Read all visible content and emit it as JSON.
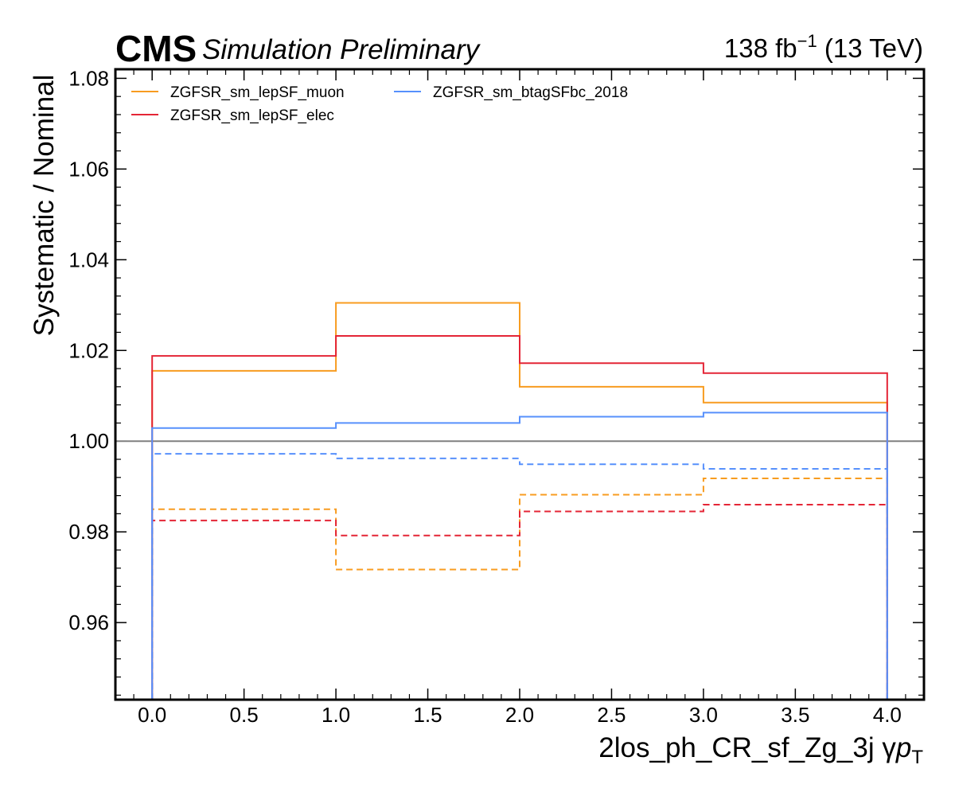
{
  "header": {
    "experiment": "CMS",
    "status": "Simulation Preliminary",
    "lumi_value": "138 fb",
    "lumi_exponent": "−1",
    "energy": "(13 TeV)"
  },
  "chart_data": {
    "type": "line",
    "style": "step",
    "ylabel": "Systematic / Nominal",
    "xlabel_region": "2los_ph_CR_sf_Zg_3j",
    "xlabel_variable": "γ",
    "xlabel_var_p": "p",
    "xlabel_var_sub": "T",
    "xlim": [
      -0.2,
      4.2
    ],
    "ylim": [
      0.943,
      1.082
    ],
    "x_ticks": [
      0.0,
      0.5,
      1.0,
      1.5,
      2.0,
      2.5,
      3.0,
      3.5,
      4.0
    ],
    "x_tick_labels": [
      "0.0",
      "0.5",
      "1.0",
      "1.5",
      "2.0",
      "2.5",
      "3.0",
      "3.5",
      "4.0"
    ],
    "y_ticks": [
      0.96,
      0.98,
      1.0,
      1.02,
      1.04,
      1.06,
      1.08
    ],
    "y_tick_labels": [
      "0.96",
      "0.98",
      "1.00",
      "1.02",
      "1.04",
      "1.06",
      "1.08"
    ],
    "bin_edges": [
      0,
      1,
      2,
      3,
      4
    ],
    "reference_line": 1.0,
    "reference_color": "#808080",
    "legend_position": "upper-left",
    "series": [
      {
        "name": "ZGFSR_sm_lepSF_muon",
        "color": "#f89c20",
        "up": [
          1.0155,
          1.0305,
          1.012,
          1.0085
        ],
        "down": [
          0.985,
          0.9717,
          0.9882,
          0.9918
        ]
      },
      {
        "name": "ZGFSR_sm_lepSF_elec",
        "color": "#e42536",
        "up": [
          1.0188,
          1.0232,
          1.0172,
          1.015
        ],
        "down": [
          0.9825,
          0.9792,
          0.9845,
          0.986
        ]
      },
      {
        "name": "ZGFSR_sm_btagSFbc_2018",
        "color": "#5790fc",
        "up": [
          1.0029,
          1.004,
          1.0054,
          1.0063
        ],
        "down": [
          0.9972,
          0.9962,
          0.9949,
          0.9939
        ]
      }
    ]
  }
}
